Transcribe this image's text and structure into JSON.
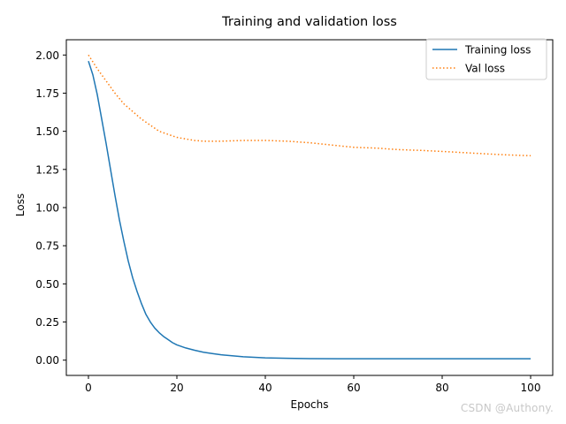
{
  "chart_data": {
    "type": "line",
    "title": "Training and validation loss",
    "xlabel": "Epochs",
    "ylabel": "Loss",
    "xlim": [
      -5,
      105
    ],
    "ylim": [
      -0.1,
      2.1
    ],
    "xticks": [
      0,
      20,
      40,
      60,
      80,
      100
    ],
    "xtick_labels": [
      "0",
      "20",
      "40",
      "60",
      "80",
      "100"
    ],
    "yticks": [
      0.0,
      0.25,
      0.5,
      0.75,
      1.0,
      1.25,
      1.5,
      1.75,
      2.0
    ],
    "ytick_labels": [
      "0.00",
      "0.25",
      "0.50",
      "0.75",
      "1.00",
      "1.25",
      "1.50",
      "1.75",
      "2.00"
    ],
    "grid": false,
    "legend_position": "top-right",
    "series": [
      {
        "name": "Training loss",
        "color": "#1f77b4",
        "style": "solid",
        "x": [
          0,
          1,
          2,
          3,
          4,
          5,
          6,
          7,
          8,
          9,
          10,
          11,
          12,
          13,
          14,
          15,
          16,
          17,
          18,
          19,
          20,
          22,
          24,
          26,
          28,
          30,
          35,
          40,
          45,
          50,
          60,
          70,
          80,
          90,
          100
        ],
        "values": [
          1.96,
          1.87,
          1.74,
          1.58,
          1.42,
          1.25,
          1.08,
          0.92,
          0.78,
          0.65,
          0.54,
          0.45,
          0.37,
          0.3,
          0.25,
          0.21,
          0.18,
          0.155,
          0.135,
          0.115,
          0.1,
          0.08,
          0.065,
          0.052,
          0.043,
          0.035,
          0.022,
          0.015,
          0.012,
          0.01,
          0.009,
          0.009,
          0.009,
          0.009,
          0.009
        ]
      },
      {
        "name": "Val loss",
        "color": "#ff7f0e",
        "style": "dotted",
        "x": [
          0,
          2,
          4,
          6,
          8,
          10,
          12,
          14,
          16,
          18,
          20,
          22,
          24,
          26,
          28,
          30,
          35,
          40,
          45,
          50,
          55,
          60,
          65,
          70,
          75,
          80,
          85,
          90,
          95,
          100
        ],
        "values": [
          2.0,
          1.91,
          1.83,
          1.75,
          1.68,
          1.63,
          1.58,
          1.54,
          1.5,
          1.48,
          1.46,
          1.45,
          1.44,
          1.435,
          1.435,
          1.435,
          1.44,
          1.44,
          1.435,
          1.425,
          1.41,
          1.395,
          1.39,
          1.38,
          1.375,
          1.368,
          1.36,
          1.352,
          1.345,
          1.34
        ]
      }
    ]
  },
  "watermark": "CSDN @Authony."
}
